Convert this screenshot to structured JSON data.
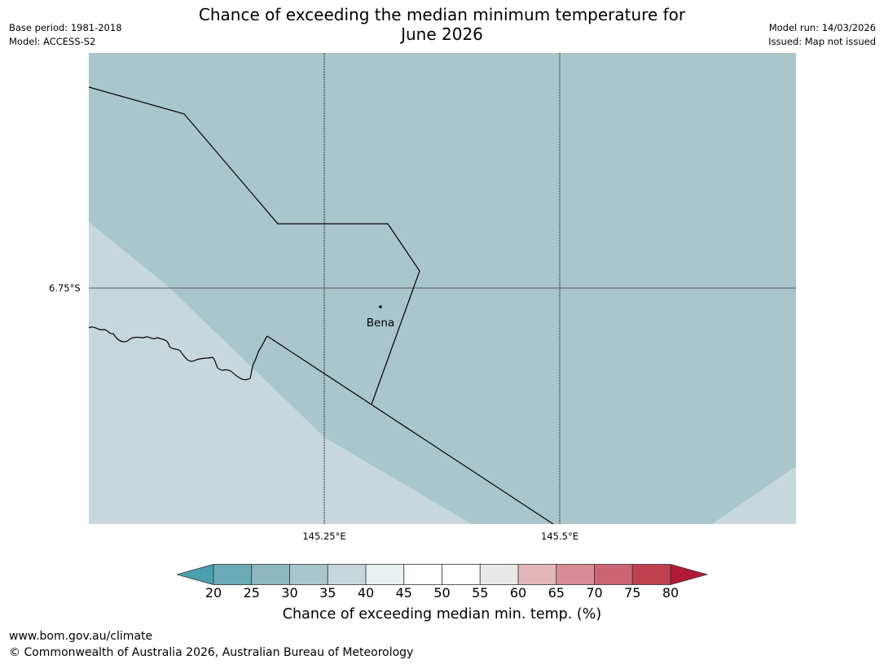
{
  "title": {
    "line1": "Chance of exceeding the median minimum temperature for",
    "line2": "June 2026"
  },
  "meta_left": {
    "base_period": "Base period: 1981-2018",
    "model": "Model: ACCESS-S2"
  },
  "meta_right": {
    "model_run": "Model run: 14/03/2026",
    "issued": "Issued: Map not issued"
  },
  "map": {
    "place_label": "Bena",
    "lat_label": "6.75°S",
    "lon_labels": [
      "145.25°E",
      "145.5°E"
    ],
    "colors": {
      "band_30_35": "#a9c6cb",
      "band_35_40": "#c7d8dc"
    }
  },
  "colorbar": {
    "ticks": [
      "20",
      "25",
      "30",
      "35",
      "40",
      "45",
      "50",
      "55",
      "60",
      "65",
      "70",
      "75",
      "80"
    ],
    "colors": [
      "#6aaab7",
      "#8ab7c0",
      "#a9c6cb",
      "#c7d8dc",
      "#e8f0f1",
      "#ffffff",
      "#ffffff",
      "#e8e8e8",
      "#e4b6ba",
      "#d88d96",
      "#cc6673",
      "#bf4150"
    ],
    "under_color": "#4aa0b0",
    "over_color": "#b01a36",
    "label": "Chance of exceeding median min. temp. (%)"
  },
  "footer": {
    "url": "www.bom.gov.au/climate",
    "copyright": "© Commonwealth of Australia 2026, Australian Bureau of Meteorology"
  }
}
